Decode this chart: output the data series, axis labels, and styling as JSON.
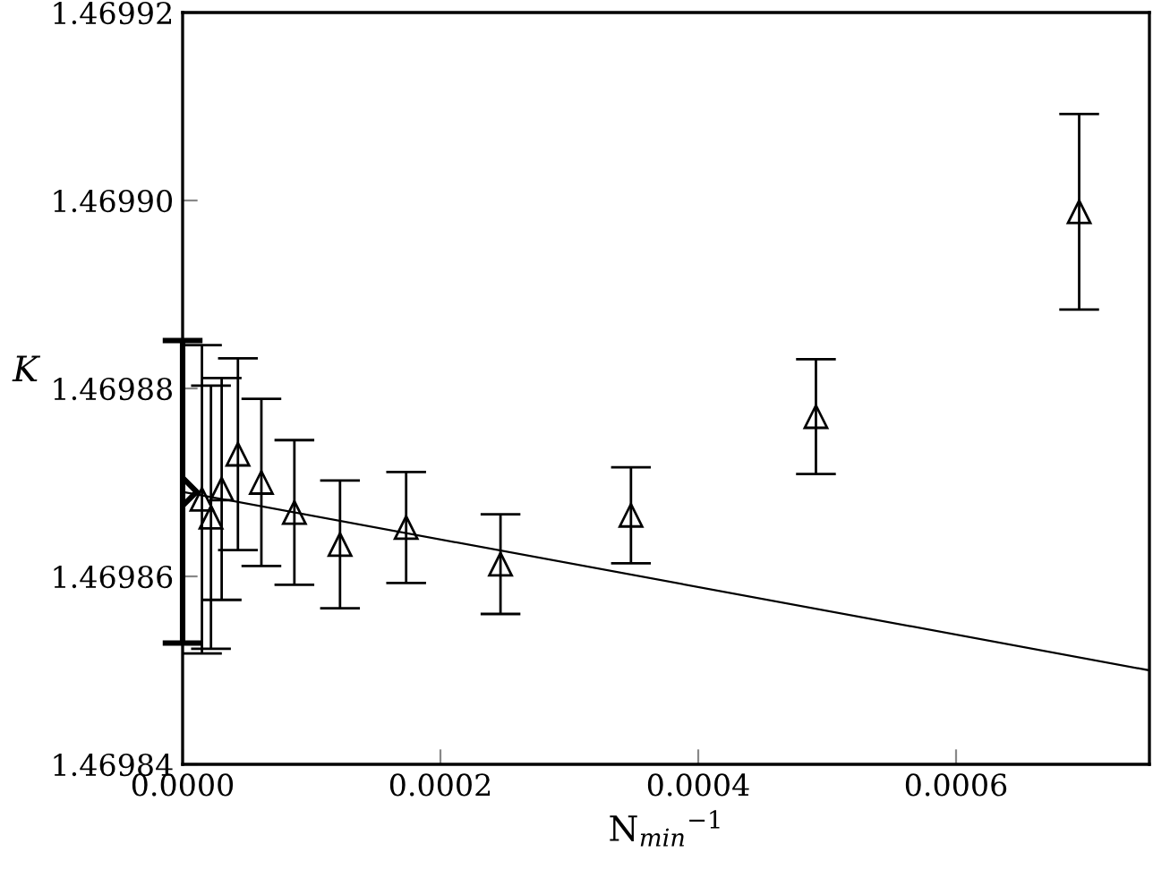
{
  "chart_data": {
    "type": "scatter",
    "xlabel": "N$_{min}$$^{−1}$",
    "ylabel": "K",
    "xlim": [
      0,
      0.00075
    ],
    "ylim": [
      1.46984,
      1.46992
    ],
    "xticks": [
      {
        "value": 0,
        "label": "0.0000"
      },
      {
        "value": 0.0002,
        "label": "0.0002"
      },
      {
        "value": 0.0004,
        "label": "0.0004"
      },
      {
        "value": 0.0006,
        "label": "0.0006"
      }
    ],
    "yticks": [
      1.46984,
      1.46986,
      1.46988,
      {
        "value": 1.4699,
        "label": "1.46990"
      },
      1.46992
    ],
    "grid": false,
    "legend": false,
    "series": [
      {
        "type": "line",
        "color": "#000000",
        "marker": "none",
        "x": [
          0,
          0.00075
        ],
        "values": [
          1.469869,
          1.46985
        ]
      },
      {
        "color": "#000000",
        "marker": "diamond",
        "x": [
          0
        ],
        "values": [
          1.469869
        ],
        "errors": [
          1.61e-05
        ]
      },
      {
        "color": "#000000",
        "marker": "triangle",
        "x": [
          1.5e-05,
          2.2e-05,
          3.03e-05,
          4.29e-05,
          6.11e-05,
          8.67e-05,
          0.0001221,
          0.0001734,
          0.0002466,
          0.0003478,
          0.0004913,
          0.0006955
        ],
        "values": [
          1.4698682,
          1.4698663,
          1.4698693,
          1.469873,
          1.46987,
          1.4698668,
          1.4698634,
          1.4698652,
          1.4698613,
          1.4698665,
          1.469877,
          1.4698988
        ],
        "errors": [
          1.64e-05,
          1.4e-05,
          1.18e-05,
          1.02e-05,
          8.9e-06,
          7.7e-06,
          6.8e-06,
          5.9e-06,
          5.3e-06,
          5.1e-06,
          6.1e-06,
          1.04e-05
        ]
      }
    ]
  }
}
